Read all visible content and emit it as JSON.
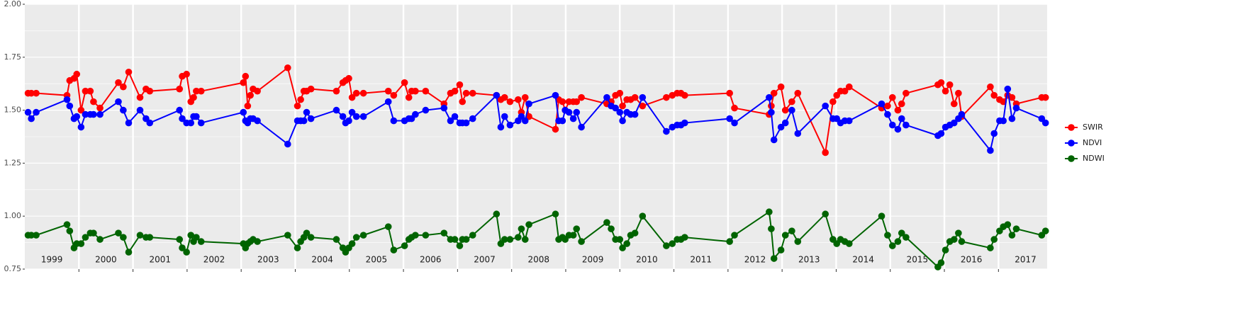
{
  "chart_data": {
    "type": "line",
    "x": [
      1999.06,
      1999.12,
      1999.21,
      1999.78,
      1999.83,
      1999.91,
      1999.96,
      2000.04,
      2000.12,
      2000.21,
      2000.27,
      2000.39,
      2000.73,
      2000.82,
      2000.92,
      2001.13,
      2001.24,
      2001.31,
      2001.86,
      2001.91,
      2001.99,
      2002.07,
      2002.12,
      2002.17,
      2002.26,
      2003.04,
      2003.08,
      2003.12,
      2003.17,
      2003.22,
      2003.3,
      2003.86,
      2004.04,
      2004.1,
      2004.16,
      2004.21,
      2004.29,
      2004.76,
      2004.88,
      2004.93,
      2004.99,
      2005.05,
      2005.13,
      2005.26,
      2005.72,
      2005.82,
      2006.02,
      2006.1,
      2006.15,
      2006.22,
      2006.41,
      2006.75,
      2006.87,
      2006.95,
      2007.04,
      2007.09,
      2007.16,
      2007.28,
      2007.72,
      2007.8,
      2007.87,
      2007.97,
      2008.12,
      2008.18,
      2008.25,
      2008.32,
      2008.81,
      2008.87,
      2008.94,
      2008.99,
      2009.06,
      2009.14,
      2009.2,
      2009.29,
      2009.76,
      2009.84,
      2009.92,
      2010.0,
      2010.05,
      2010.13,
      2010.2,
      2010.28,
      2010.42,
      2010.86,
      2010.97,
      2011.06,
      2011.13,
      2011.2,
      2012.03,
      2012.12,
      2012.76,
      2012.8,
      2012.85,
      2012.98,
      2013.06,
      2013.18,
      2013.29,
      2013.8,
      2013.94,
      2014.01,
      2014.08,
      2014.16,
      2014.24,
      2014.84,
      2014.95,
      2015.04,
      2015.14,
      2015.21,
      2015.29,
      2015.88,
      2015.94,
      2016.02,
      2016.1,
      2016.18,
      2016.26,
      2016.32,
      2016.85,
      2016.92,
      2017.02,
      2017.09,
      2017.17,
      2017.25,
      2017.33,
      2017.8,
      2017.87
    ],
    "series": [
      {
        "name": "SWIR",
        "color": "#ff0000",
        "values": [
          1.58,
          1.58,
          1.58,
          1.57,
          1.64,
          1.65,
          1.67,
          1.5,
          1.59,
          1.59,
          1.54,
          1.51,
          1.63,
          1.61,
          1.68,
          1.56,
          1.6,
          1.59,
          1.6,
          1.66,
          1.67,
          1.54,
          1.56,
          1.59,
          1.59,
          1.63,
          1.66,
          1.52,
          1.57,
          1.6,
          1.59,
          1.7,
          1.52,
          1.55,
          1.59,
          1.59,
          1.6,
          1.59,
          1.63,
          1.64,
          1.65,
          1.56,
          1.58,
          1.58,
          1.59,
          1.57,
          1.63,
          1.56,
          1.59,
          1.59,
          1.59,
          1.53,
          1.58,
          1.59,
          1.62,
          1.54,
          1.58,
          1.58,
          1.57,
          1.55,
          1.56,
          1.54,
          1.55,
          1.49,
          1.56,
          1.47,
          1.41,
          1.55,
          1.54,
          1.5,
          1.54,
          1.54,
          1.54,
          1.56,
          1.53,
          1.54,
          1.57,
          1.58,
          1.52,
          1.55,
          1.55,
          1.56,
          1.52,
          1.56,
          1.57,
          1.58,
          1.58,
          1.57,
          1.58,
          1.51,
          1.48,
          1.52,
          1.58,
          1.61,
          1.5,
          1.54,
          1.58,
          1.3,
          1.54,
          1.57,
          1.59,
          1.59,
          1.61,
          1.51,
          1.52,
          1.56,
          1.5,
          1.53,
          1.58,
          1.62,
          1.63,
          1.59,
          1.62,
          1.53,
          1.58,
          1.47,
          1.61,
          1.57,
          1.55,
          1.54,
          1.57,
          1.56,
          1.53,
          1.56,
          1.56
        ]
      },
      {
        "name": "NDVI",
        "color": "#0000ff",
        "values": [
          1.49,
          1.46,
          1.49,
          1.55,
          1.52,
          1.46,
          1.47,
          1.42,
          1.48,
          1.48,
          1.48,
          1.48,
          1.54,
          1.5,
          1.44,
          1.5,
          1.46,
          1.44,
          1.5,
          1.46,
          1.44,
          1.44,
          1.47,
          1.47,
          1.44,
          1.49,
          1.45,
          1.44,
          1.46,
          1.46,
          1.45,
          1.34,
          1.45,
          1.45,
          1.45,
          1.49,
          1.46,
          1.5,
          1.47,
          1.44,
          1.45,
          1.49,
          1.47,
          1.47,
          1.54,
          1.45,
          1.45,
          1.46,
          1.46,
          1.48,
          1.5,
          1.51,
          1.45,
          1.47,
          1.44,
          1.44,
          1.44,
          1.46,
          1.57,
          1.42,
          1.47,
          1.43,
          1.45,
          1.47,
          1.45,
          1.53,
          1.57,
          1.45,
          1.45,
          1.5,
          1.49,
          1.46,
          1.49,
          1.42,
          1.56,
          1.52,
          1.51,
          1.49,
          1.45,
          1.49,
          1.48,
          1.48,
          1.56,
          1.4,
          1.42,
          1.43,
          1.43,
          1.44,
          1.46,
          1.44,
          1.56,
          1.49,
          1.36,
          1.42,
          1.44,
          1.5,
          1.39,
          1.52,
          1.46,
          1.46,
          1.44,
          1.45,
          1.45,
          1.53,
          1.48,
          1.43,
          1.41,
          1.46,
          1.43,
          1.38,
          1.39,
          1.42,
          1.43,
          1.44,
          1.46,
          1.48,
          1.31,
          1.39,
          1.45,
          1.45,
          1.6,
          1.46,
          1.51,
          1.46,
          1.44
        ]
      },
      {
        "name": "NDWI",
        "color": "#006400",
        "values": [
          0.91,
          0.91,
          0.91,
          0.96,
          0.93,
          0.85,
          0.87,
          0.87,
          0.9,
          0.92,
          0.92,
          0.89,
          0.92,
          0.9,
          0.83,
          0.91,
          0.9,
          0.9,
          0.89,
          0.85,
          0.83,
          0.91,
          0.88,
          0.9,
          0.88,
          0.87,
          0.85,
          0.87,
          0.88,
          0.89,
          0.88,
          0.91,
          0.85,
          0.88,
          0.9,
          0.92,
          0.9,
          0.89,
          0.85,
          0.83,
          0.85,
          0.87,
          0.9,
          0.91,
          0.95,
          0.84,
          0.86,
          0.89,
          0.9,
          0.91,
          0.91,
          0.92,
          0.89,
          0.89,
          0.86,
          0.89,
          0.89,
          0.91,
          1.01,
          0.87,
          0.89,
          0.89,
          0.9,
          0.94,
          0.89,
          0.96,
          1.01,
          0.89,
          0.9,
          0.89,
          0.91,
          0.91,
          0.94,
          0.88,
          0.97,
          0.94,
          0.89,
          0.89,
          0.85,
          0.87,
          0.91,
          0.92,
          1.0,
          0.86,
          0.87,
          0.89,
          0.89,
          0.9,
          0.88,
          0.91,
          1.02,
          0.94,
          0.8,
          0.84,
          0.91,
          0.93,
          0.88,
          1.01,
          0.89,
          0.87,
          0.89,
          0.88,
          0.87,
          1.0,
          0.91,
          0.86,
          0.88,
          0.92,
          0.9,
          0.76,
          0.78,
          0.84,
          0.88,
          0.89,
          0.92,
          0.88,
          0.85,
          0.89,
          0.93,
          0.95,
          0.96,
          0.91,
          0.94,
          0.91,
          0.93
        ]
      }
    ],
    "xlim": [
      1999.0,
      2017.9
    ],
    "xticks": [
      {
        "value": 1999.5,
        "label": "1999"
      },
      {
        "value": 2000.5,
        "label": "2000"
      },
      {
        "value": 2001.5,
        "label": "2001"
      },
      {
        "value": 2002.5,
        "label": "2002"
      },
      {
        "value": 2003.5,
        "label": "2003"
      },
      {
        "value": 2004.5,
        "label": "2004"
      },
      {
        "value": 2005.5,
        "label": "2005"
      },
      {
        "value": 2006.5,
        "label": "2006"
      },
      {
        "value": 2007.5,
        "label": "2007"
      },
      {
        "value": 2008.5,
        "label": "2008"
      },
      {
        "value": 2009.5,
        "label": "2009"
      },
      {
        "value": 2010.5,
        "label": "2010"
      },
      {
        "value": 2011.5,
        "label": "2011"
      },
      {
        "value": 2012.5,
        "label": "2012"
      },
      {
        "value": 2013.5,
        "label": "2013"
      },
      {
        "value": 2014.5,
        "label": "2014"
      },
      {
        "value": 2015.5,
        "label": "2015"
      },
      {
        "value": 2016.5,
        "label": "2016"
      },
      {
        "value": 2017.5,
        "label": "2017"
      }
    ],
    "xgrid": [
      2000,
      2001,
      2002,
      2003,
      2004,
      2005,
      2006,
      2007,
      2008,
      2009,
      2010,
      2011,
      2012,
      2013,
      2014,
      2015,
      2016,
      2017
    ],
    "ylim": [
      0.75,
      2
    ],
    "yticks": [
      {
        "value": 0.75,
        "label": "0.75"
      },
      {
        "value": 1,
        "label": "1.00"
      },
      {
        "value": 1.25,
        "label": "1.25"
      },
      {
        "value": 1.5,
        "label": "1.50"
      },
      {
        "value": 1.75,
        "label": "1.75"
      },
      {
        "value": 2,
        "label": "2.00"
      }
    ],
    "yminor": [
      0.875,
      1.125,
      1.375,
      1.625,
      1.875
    ],
    "grid": true,
    "legend": "right"
  }
}
